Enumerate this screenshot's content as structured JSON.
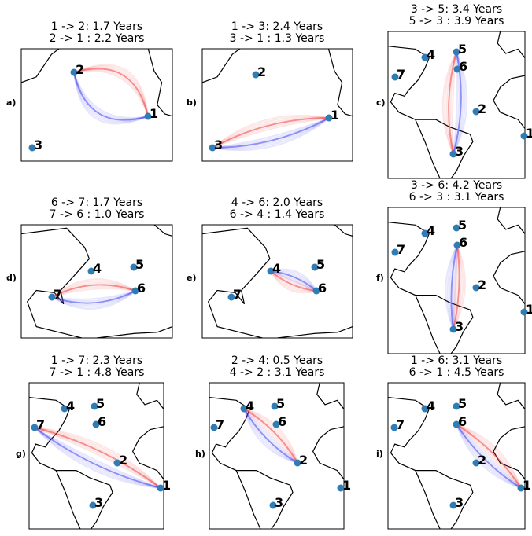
{
  "panels": [
    {
      "label": "a)",
      "title": [
        "1 -> 2: 1.7 Years",
        "2 -> 1 : 2.2 Years"
      ],
      "nodes": [
        "2",
        "1",
        "3"
      ]
    },
    {
      "label": "b)",
      "title": [
        "1 -> 3: 2.4 Years",
        "3 -> 1 : 1.3 Years"
      ],
      "nodes": [
        "2",
        "1",
        "3"
      ]
    },
    {
      "label": "c)",
      "title": [
        "3 -> 5: 3.4 Years",
        "5 -> 3 : 3.9 Years"
      ],
      "nodes": [
        "4",
        "5",
        "7",
        "6",
        "2",
        "1",
        "3"
      ]
    },
    {
      "label": "d)",
      "title": [
        "6 -> 7: 1.7 Years",
        "7 -> 6 : 1.0 Years"
      ],
      "nodes": [
        "4",
        "5",
        "6",
        "7"
      ]
    },
    {
      "label": "e)",
      "title": [
        "4 -> 6: 2.0 Years",
        "6 -> 4 : 1.4 Years"
      ],
      "nodes": [
        "4",
        "5",
        "6",
        "7"
      ]
    },
    {
      "label": "f)",
      "title": [
        "3 -> 6: 4.2 Years",
        "6 -> 3 : 3.1 Years"
      ],
      "nodes": [
        "4",
        "5",
        "7",
        "6",
        "2",
        "1",
        "3"
      ]
    },
    {
      "label": "g)",
      "title": [
        "1 -> 7: 2.3 Years",
        "7 -> 1 : 4.8 Years"
      ],
      "nodes": [
        "7",
        "4",
        "5",
        "6",
        "2",
        "1",
        "3"
      ]
    },
    {
      "label": "h)",
      "title": [
        "2 -> 4: 0.5 Years",
        "4 -> 2 : 3.1 Years"
      ],
      "nodes": [
        "7",
        "4",
        "5",
        "6",
        "2",
        "1",
        "3"
      ]
    },
    {
      "label": "i)",
      "title": [
        "1 -> 6: 3.1 Years",
        "6 -> 1 : 4.5 Years"
      ],
      "nodes": [
        "7",
        "4",
        "5",
        "6",
        "2",
        "1",
        "3"
      ]
    }
  ]
}
